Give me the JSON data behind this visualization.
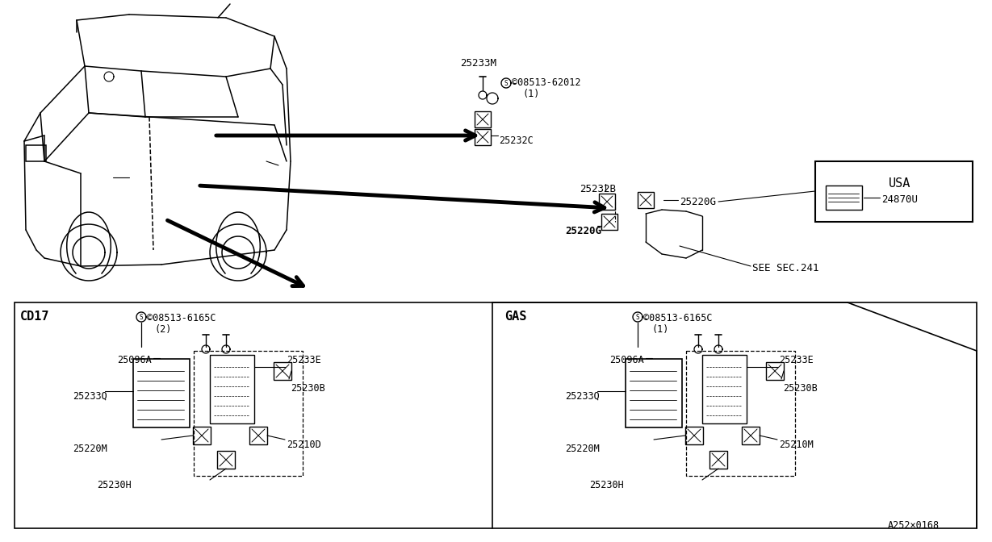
{
  "bg_color": "#ffffff",
  "lc": "#000000",
  "fig_width": 12.29,
  "fig_height": 6.72,
  "diagram_code": "A252×0168",
  "upper": {
    "label_25233M": "25233M",
    "label_S1": "©08513-62012",
    "label_S1_qty": "(1)",
    "label_25232C": "25232C",
    "label_25232B": "25232B",
    "label_25220G_1": "25220G",
    "label_25220G_2": "25220G",
    "label_see": "SEE SEC.241",
    "label_usa": "USA",
    "label_24870U": "24870U"
  },
  "cd17": {
    "section": "CD17",
    "bolt_label": "©08513-6165C",
    "bolt_qty": "(2)",
    "p25096A": "25096A",
    "p25233E": "25233E",
    "p25233Q": "25233Q",
    "p25230B": "25230B",
    "p25220M": "25220M",
    "p25210D": "25210D",
    "p25230H": "25230H"
  },
  "gas": {
    "section": "GAS",
    "bolt_label": "©08513-6165C",
    "bolt_qty": "(1)",
    "p25096A": "25096A",
    "p25233E": "25233E",
    "p25233Q": "25233Q",
    "p25230B": "25230B",
    "p25220M": "25220M",
    "p25210M": "25210M",
    "p25230H": "25230H"
  }
}
